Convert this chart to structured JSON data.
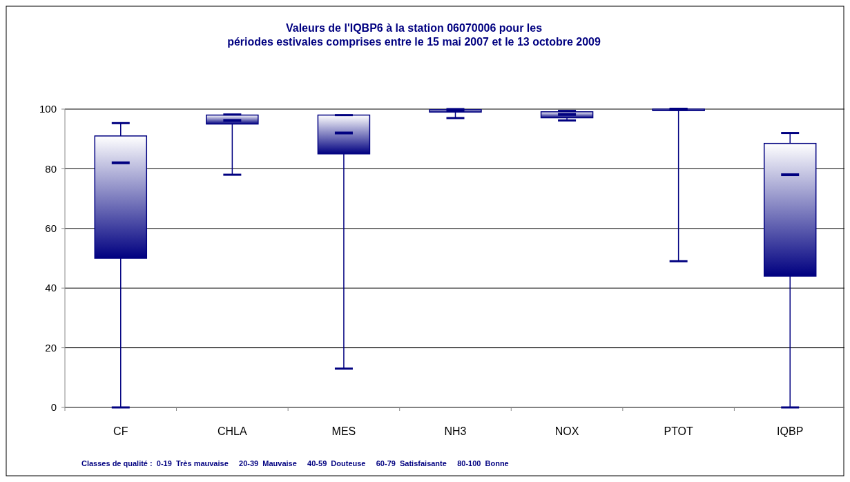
{
  "chart_data": {
    "type": "box",
    "title": "Valeurs de l'IQBP6 à la station 06070006 pour les\npériodes estivales comprises entre le 15 mai 2007 et le 13 octobre 2009",
    "categories": [
      "CF",
      "CHLA",
      "MES",
      "NH3",
      "NOX",
      "PTOT",
      "IQBP"
    ],
    "boxes": [
      {
        "low": 0,
        "q1": 50,
        "median": 82,
        "q3": 91,
        "high": 95.3
      },
      {
        "low": 78,
        "q1": 95,
        "median": 96.2,
        "q3": 98,
        "high": 98.2
      },
      {
        "low": 13,
        "q1": 85,
        "median": 92,
        "q3": 98,
        "high": 98
      },
      {
        "low": 97,
        "q1": 99,
        "median": 99.3,
        "q3": 99.8,
        "high": 100
      },
      {
        "low": 96.2,
        "q1": 97.1,
        "median": 98.2,
        "q3": 99.1,
        "high": 99.4
      },
      {
        "low": 49,
        "q1": 99.5,
        "median": 100,
        "q3": 100,
        "high": 100
      },
      {
        "low": 0,
        "q1": 44,
        "median": 78,
        "q3": 88.5,
        "high": 92
      }
    ],
    "color": "#000080",
    "ylim": [
      0,
      100
    ],
    "yticks": [
      0,
      20,
      40,
      60,
      80,
      100
    ],
    "grid": "y",
    "annotations": [
      "Classes de qualité :  0-19  Très mauvaise     20-39  Mauvaise     40-59  Douteuse     60-79  Satisfaisante     80-100  Bonne"
    ]
  }
}
